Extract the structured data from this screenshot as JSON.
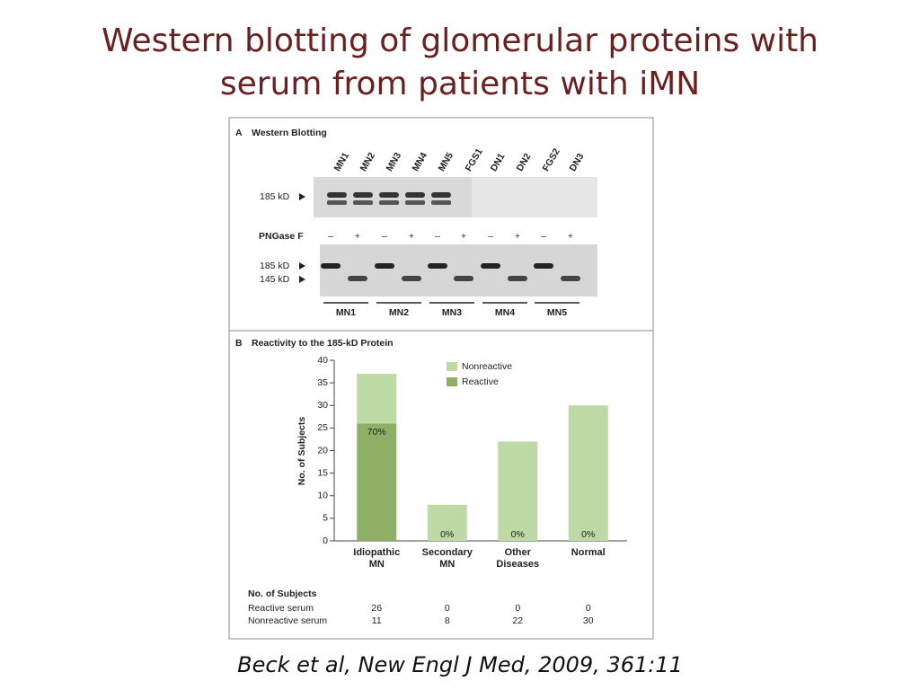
{
  "slide": {
    "title": "Western blotting of glomerular proteins with serum from patients with iMN",
    "citation": "Beck et al, New Engl J Med, 2009, 361:11"
  },
  "panel_a": {
    "letter": "A",
    "title": "Western Blotting",
    "lanes": [
      "MN1",
      "MN2",
      "MN3",
      "MN4",
      "MN5",
      "FGS1",
      "DN1",
      "DN2",
      "FGS2",
      "DN3"
    ],
    "marker_top": "185 kD",
    "treatment": "PNGase F",
    "signs": [
      "–",
      "+",
      "–",
      "+",
      "–",
      "+",
      "–",
      "+",
      "–",
      "+"
    ],
    "markers_bottom": [
      "185 kD",
      "145 kD"
    ],
    "groups": [
      "MN1",
      "MN2",
      "MN3",
      "MN4",
      "MN5"
    ]
  },
  "chart_data": {
    "type": "bar",
    "stacked": true,
    "panel_letter": "B",
    "title": "Reactivity to the 185-kD Protein",
    "ylabel": "No. of Subjects",
    "categories": [
      "Idiopathic MN",
      "Secondary MN",
      "Other Diseases",
      "Normal"
    ],
    "series": [
      {
        "name": "Nonreactive",
        "color": "#bdd9a4",
        "values": [
          11,
          8,
          22,
          30
        ]
      },
      {
        "name": "Reactive",
        "color": "#8daf66",
        "values": [
          26,
          0,
          0,
          0
        ]
      }
    ],
    "annotations": [
      "70%",
      "0%",
      "0%",
      "0%"
    ],
    "ylim": [
      0,
      40
    ],
    "yticks": [
      0,
      5,
      10,
      15,
      20,
      25,
      30,
      35,
      40
    ],
    "table": {
      "title": "No. of Subjects",
      "row_labels": [
        "Reactive serum",
        "Nonreactive serum"
      ]
    }
  }
}
